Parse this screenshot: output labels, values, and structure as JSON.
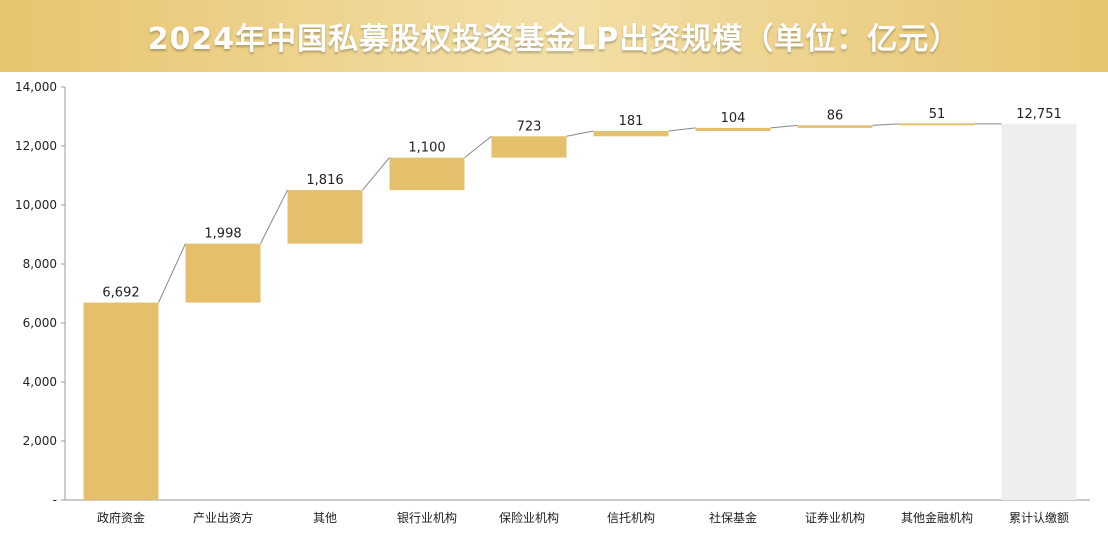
{
  "colors": {
    "bar": "#e4c06c",
    "total_bar": "#eeeeee",
    "title_bg": "#e7c46f",
    "title_text": "#ffffff",
    "axis": "#9a9a9a",
    "connector": "#888888"
  },
  "chart_data": {
    "type": "bar",
    "subtype": "waterfall",
    "title": "2024年中国私募股权投资基金LP出资规模（单位：亿元）",
    "xlabel": "",
    "ylabel": "",
    "ylim": [
      0,
      14000
    ],
    "y_ticks": [
      0,
      2000,
      4000,
      6000,
      8000,
      10000,
      12000,
      14000
    ],
    "y_tick_labels": [
      "-",
      "2,000",
      "4,000",
      "6,000",
      "8,000",
      "10,000",
      "12,000",
      "14,000"
    ],
    "grid": false,
    "legend": "none",
    "categories": [
      "政府资金",
      "产业出资方",
      "其他",
      "银行业机构",
      "保险业机构",
      "信托机构",
      "社保基金",
      "证券业机构",
      "其他金融机构",
      "累计认缴额"
    ],
    "values": [
      6692,
      1998,
      1816,
      1100,
      723,
      181,
      104,
      86,
      51,
      12751
    ],
    "value_labels": [
      "6,692",
      "1,998",
      "1,816",
      "1,100",
      "723",
      "181",
      "104",
      "86",
      "51",
      "12,751"
    ],
    "total_index": 9
  }
}
